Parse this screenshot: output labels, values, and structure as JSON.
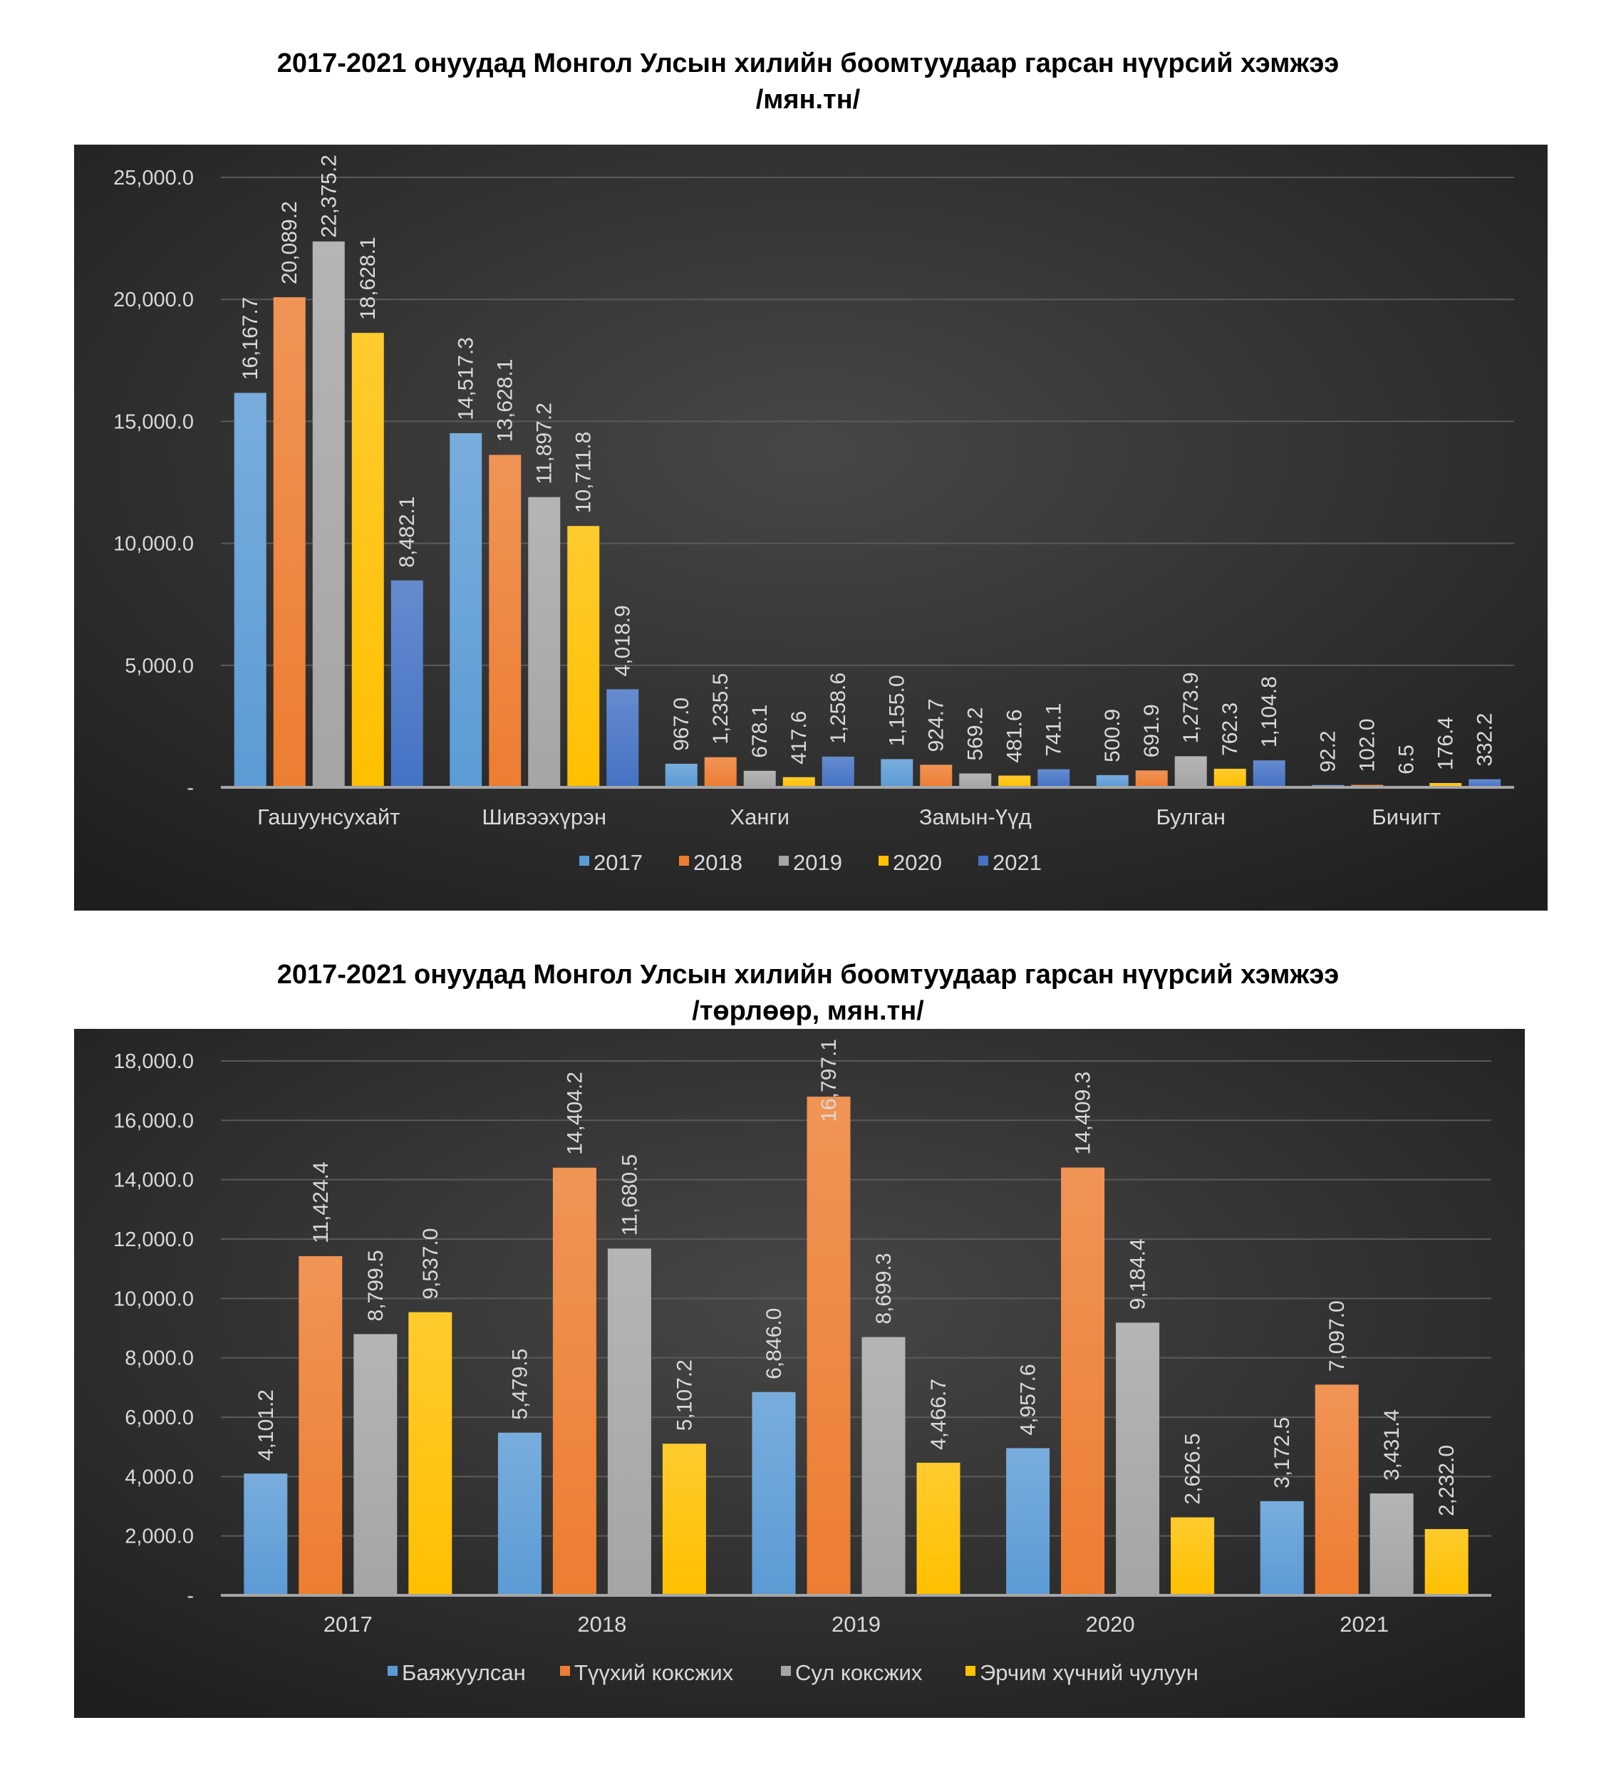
{
  "colors": {
    "2017": "#5b9bd5",
    "2018": "#ed7d31",
    "2019": "#a5a5a5",
    "2020": "#ffc000",
    "2021": "#4472c4",
    "background": "#333333",
    "text": "#d9d9d9"
  },
  "chart_data": [
    {
      "type": "bar",
      "title": [
        "2017-2021 онуудад Монгол Улсын хилийн боомтуудаар гарсан нүүрсий хэмжээ",
        "/мян.тн/"
      ],
      "categories": [
        "Гашуунсухайт",
        "Шивээхүрэн",
        "Ханги",
        "Замын-Үүд",
        "Булган",
        "Бичигт"
      ],
      "yticks": [
        "-",
        "5,000.0",
        "10,000.0",
        "15,000.0",
        "20,000.0",
        "25,000.0"
      ],
      "ylim": [
        0,
        25000
      ],
      "grid": true,
      "legend_position": "bottom",
      "series": [
        {
          "name": "2017",
          "color": "#5b9bd5",
          "values": [
            16167.7,
            14517.3,
            967.0,
            1155.0,
            500.9,
            92.2
          ],
          "labels": [
            "16,167.7",
            "14,517.3",
            "967.0",
            "1,155.0",
            "500.9",
            "92.2"
          ]
        },
        {
          "name": "2018",
          "color": "#ed7d31",
          "values": [
            20089.2,
            13628.1,
            1235.5,
            924.7,
            691.9,
            102.0
          ],
          "labels": [
            "20,089.2",
            "13,628.1",
            "1,235.5",
            "924.7",
            "691.9",
            "102.0"
          ]
        },
        {
          "name": "2019",
          "color": "#a5a5a5",
          "values": [
            22375.2,
            11897.2,
            678.1,
            569.2,
            1273.9,
            6.5
          ],
          "labels": [
            "22,375.2",
            "11,897.2",
            "678.1",
            "569.2",
            "1,273.9",
            "6.5"
          ]
        },
        {
          "name": "2020",
          "color": "#ffc000",
          "values": [
            18628.1,
            10711.8,
            417.6,
            481.6,
            762.3,
            176.4
          ],
          "labels": [
            "18,628.1",
            "10,711.8",
            "417.6",
            "481.6",
            "762.3",
            "176.4"
          ]
        },
        {
          "name": "2021",
          "color": "#4472c4",
          "values": [
            8482.1,
            4018.9,
            1258.6,
            741.1,
            1104.8,
            332.2
          ],
          "labels": [
            "8,482.1",
            "4,018.9",
            "1,258.6",
            "741.1",
            "1,104.8",
            "332.2"
          ]
        }
      ]
    },
    {
      "type": "bar",
      "title": [
        "2017-2021 онуудад Монгол Улсын хилийн боомтуудаар гарсан нүүрсий хэмжээ",
        "/төрлөөр, мян.тн/"
      ],
      "categories": [
        "2017",
        "2018",
        "2019",
        "2020",
        "2021"
      ],
      "yticks": [
        "-",
        "2,000.0",
        "4,000.0",
        "6,000.0",
        "8,000.0",
        "10,000.0",
        "12,000.0",
        "14,000.0",
        "16,000.0",
        "18,000.0"
      ],
      "ylim": [
        0,
        18000
      ],
      "grid": true,
      "legend_position": "bottom",
      "series": [
        {
          "name": "Баяжуулсан",
          "color": "#5b9bd5",
          "values": [
            4101.2,
            5479.5,
            6846.0,
            4957.6,
            3172.5
          ],
          "labels": [
            "4,101.2",
            "5,479.5",
            "6,846.0",
            "4,957.6",
            "3,172.5"
          ]
        },
        {
          "name": "Түүхий коксжих",
          "color": "#ed7d31",
          "values": [
            11424.4,
            14404.2,
            16797.1,
            14409.3,
            7097.0
          ],
          "labels": [
            "11,424.4",
            "14,404.2",
            "16,797.1",
            "14,409.3",
            "7,097.0"
          ]
        },
        {
          "name": "Сул коксжих",
          "color": "#a5a5a5",
          "values": [
            8799.5,
            11680.5,
            8699.3,
            9184.4,
            3431.4
          ],
          "labels": [
            "8,799.5",
            "11,680.5",
            "8,699.3",
            "9,184.4",
            "3,431.4"
          ]
        },
        {
          "name": "Эрчим хүчний чулуун",
          "color": "#ffc000",
          "values": [
            9537.0,
            5107.2,
            4466.7,
            2626.5,
            2232.0
          ],
          "labels": [
            "9,537.0",
            "5,107.2",
            "4,466.7",
            "2,626.5",
            "2,232.0"
          ]
        }
      ]
    }
  ]
}
